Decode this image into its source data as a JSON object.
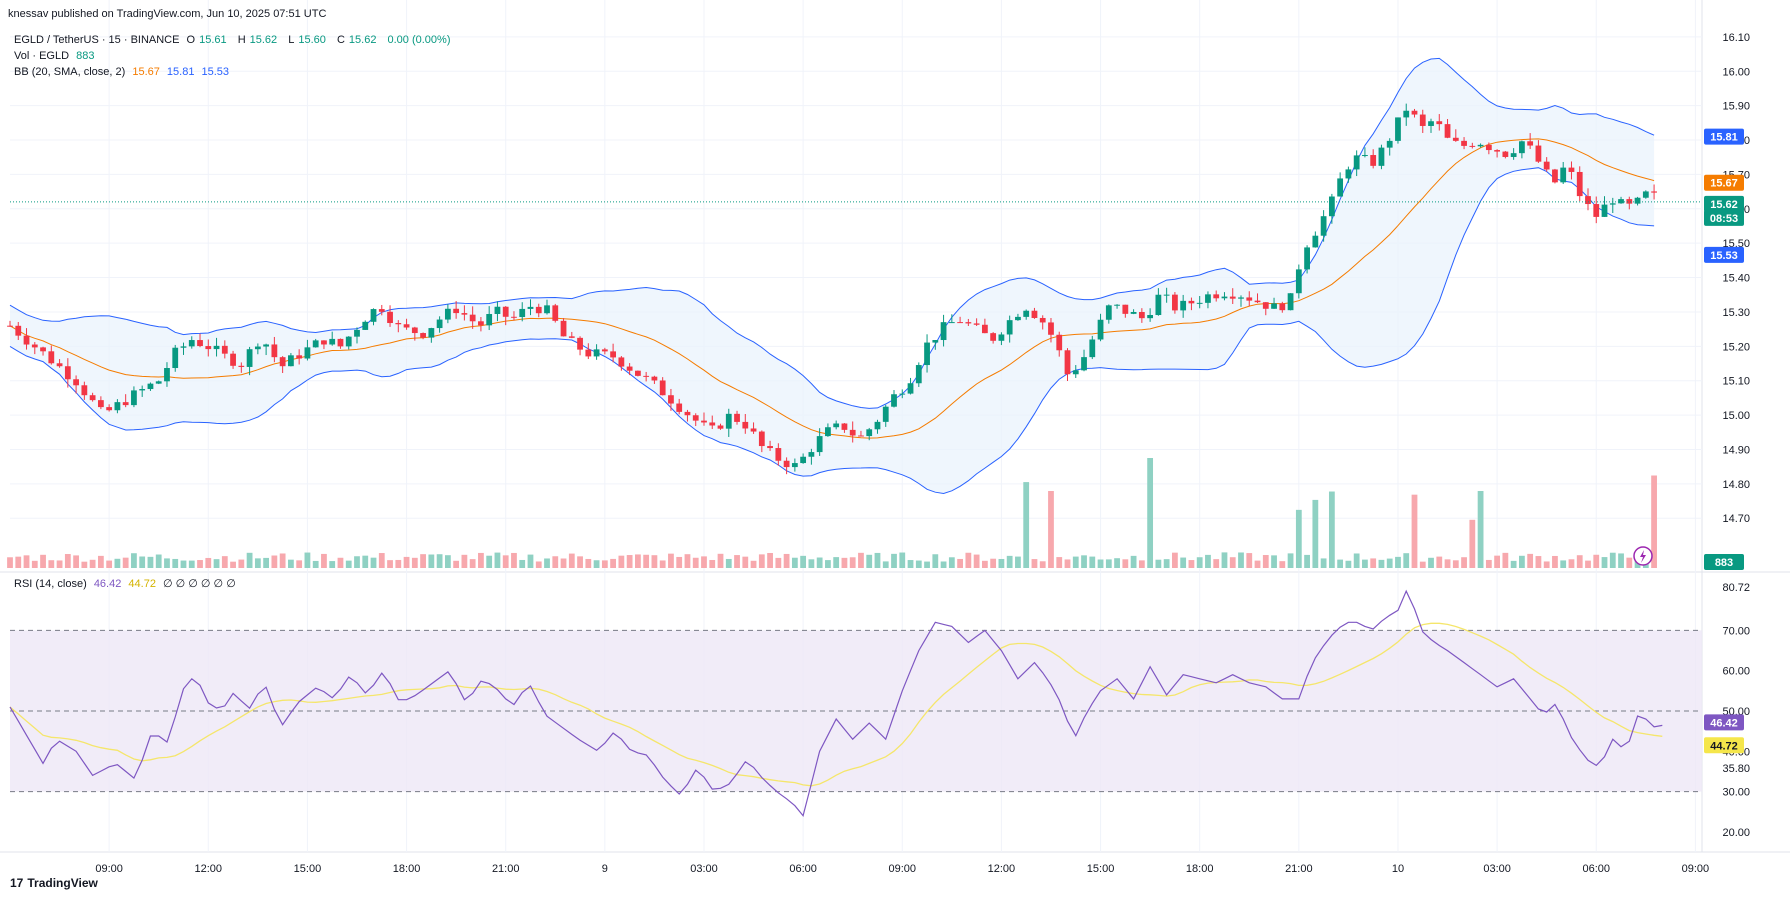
{
  "banner": "knessav published on TradingView.com, Jun 10, 2025 07:51 UTC",
  "symbol": {
    "title": "EGLD / TetherUS · 15 · BINANCE",
    "o_label": "O",
    "o": "15.61",
    "h_label": "H",
    "h": "15.62",
    "l_label": "L",
    "l": "15.60",
    "c_label": "C",
    "c": "15.62",
    "change": "0.00 (0.00%)"
  },
  "volume_legend": {
    "label": "Vol · EGLD",
    "value": "883"
  },
  "bb_legend": {
    "label": "BB (20, SMA, close, 2)",
    "basis": "15.67",
    "upper": "15.81",
    "lower": "15.53"
  },
  "rsi_legend": {
    "label": "RSI (14, close)",
    "rsi": "46.42",
    "ma": "44.72",
    "empties": "∅ ∅ ∅ ∅ ∅ ∅"
  },
  "brand": {
    "logo": "17",
    "name": "TradingView"
  },
  "colors": {
    "up": "#089981",
    "down": "#f23645",
    "vol_up": "#8fd1c3",
    "vol_down": "#f7a8ad",
    "bb_band": "#2962ff",
    "bb_basis": "#f57c00",
    "bb_fill": "#e8f2fc",
    "rsi_line": "#7e57c2",
    "rsi_ma": "#f5e66b",
    "rsi_fill": "#ede7f6"
  },
  "price_labels": [
    {
      "text": "15.81",
      "value": 15.81,
      "bg": "#2962ff"
    },
    {
      "text": "15.67",
      "value": 15.67,
      "bg": "#f57c00"
    },
    {
      "text": "15.62",
      "value": 15.62,
      "bg": "#089981"
    },
    {
      "text": "08:53",
      "value": 15.62,
      "bg": "#089981",
      "sub": true
    },
    {
      "text": "15.53",
      "value": 15.53,
      "bg": "#2962ff"
    }
  ],
  "volume_label": {
    "text": "883",
    "bg": "#089981"
  },
  "rsi_labels": [
    {
      "text": "46.42",
      "value": 46.42,
      "bg": "#7e57c2",
      "fg": "#ffffff"
    },
    {
      "text": "44.72",
      "value": 44.72,
      "bg": "#f5e64b",
      "fg": "#131722"
    }
  ],
  "chart_data": [
    {
      "type": "candlestick",
      "title": "EGLD / TetherUS · 15 · BINANCE",
      "ylim": [
        14.66,
        16.12
      ],
      "price_ticks": [
        16.1,
        16.0,
        15.9,
        15.8,
        15.7,
        15.6,
        15.5,
        15.4,
        15.3,
        15.2,
        15.1,
        15.0,
        14.9,
        14.8,
        14.7
      ],
      "tick_labels": [
        "16.10",
        "16.00",
        "15.90",
        "15.80",
        "15.70",
        "15.60",
        "15.50",
        "15.40",
        "15.30",
        "15.20",
        "15.10",
        "15.00",
        "14.90",
        "14.80",
        "14.70"
      ],
      "x_ticks": [
        {
          "label": "09:00",
          "t": 9
        },
        {
          "label": "12:00",
          "t": 12
        },
        {
          "label": "15:00",
          "t": 15
        },
        {
          "label": "18:00",
          "t": 18
        },
        {
          "label": "21:00",
          "t": 21
        },
        {
          "label": "9",
          "t": 24
        },
        {
          "label": "03:00",
          "t": 27
        },
        {
          "label": "06:00",
          "t": 30
        },
        {
          "label": "09:00",
          "t": 33
        },
        {
          "label": "12:00",
          "t": 36
        },
        {
          "label": "15:00",
          "t": 39
        },
        {
          "label": "18:00",
          "t": 42
        },
        {
          "label": "21:00",
          "t": 45
        },
        {
          "label": "10",
          "t": 48
        },
        {
          "label": "03:00",
          "t": 51
        },
        {
          "label": "06:00",
          "t": 54
        },
        {
          "label": "09:00",
          "t": 57
        }
      ],
      "x_range_hours": [
        6.0,
        57.2
      ],
      "last_price": 15.62,
      "close_anchors": [
        [
          6.0,
          15.26
        ],
        [
          7.0,
          15.18
        ],
        [
          8.0,
          15.1
        ],
        [
          8.8,
          15.0
        ],
        [
          9.6,
          15.05
        ],
        [
          10.5,
          15.1
        ],
        [
          11.0,
          15.18
        ],
        [
          11.5,
          15.22
        ],
        [
          12.0,
          15.2
        ],
        [
          12.5,
          15.17
        ],
        [
          13.0,
          15.15
        ],
        [
          13.6,
          15.23
        ],
        [
          14.2,
          15.14
        ],
        [
          14.8,
          15.18
        ],
        [
          15.5,
          15.22
        ],
        [
          16.0,
          15.2
        ],
        [
          16.7,
          15.28
        ],
        [
          17.2,
          15.32
        ],
        [
          17.8,
          15.25
        ],
        [
          18.5,
          15.24
        ],
        [
          19.0,
          15.28
        ],
        [
          19.5,
          15.31
        ],
        [
          20.2,
          15.26
        ],
        [
          20.7,
          15.3
        ],
        [
          21.2,
          15.28
        ],
        [
          21.8,
          15.32
        ],
        [
          22.3,
          15.3
        ],
        [
          22.8,
          15.22
        ],
        [
          23.5,
          15.18
        ],
        [
          24.3,
          15.17
        ],
        [
          25.0,
          15.12
        ],
        [
          25.6,
          15.08
        ],
        [
          26.2,
          15.03
        ],
        [
          26.8,
          14.98
        ],
        [
          27.2,
          14.95
        ],
        [
          27.8,
          15.0
        ],
        [
          28.3,
          14.97
        ],
        [
          28.8,
          14.9
        ],
        [
          29.3,
          14.87
        ],
        [
          29.8,
          14.85
        ],
        [
          30.2,
          14.9
        ],
        [
          30.7,
          14.95
        ],
        [
          31.2,
          14.97
        ],
        [
          31.7,
          14.93
        ],
        [
          32.2,
          14.98
        ],
        [
          32.7,
          15.05
        ],
        [
          33.2,
          15.1
        ],
        [
          33.7,
          15.2
        ],
        [
          34.2,
          15.25
        ],
        [
          34.7,
          15.28
        ],
        [
          35.2,
          15.25
        ],
        [
          35.7,
          15.22
        ],
        [
          36.2,
          15.27
        ],
        [
          36.7,
          15.32
        ],
        [
          37.2,
          15.28
        ],
        [
          37.6,
          15.22
        ],
        [
          38.0,
          15.12
        ],
        [
          38.4,
          15.15
        ],
        [
          38.9,
          15.25
        ],
        [
          39.3,
          15.32
        ],
        [
          39.8,
          15.3
        ],
        [
          40.3,
          15.28
        ],
        [
          40.8,
          15.35
        ],
        [
          41.3,
          15.31
        ],
        [
          41.8,
          15.33
        ],
        [
          42.3,
          15.35
        ],
        [
          42.8,
          15.36
        ],
        [
          43.3,
          15.35
        ],
        [
          43.8,
          15.33
        ],
        [
          44.3,
          15.31
        ],
        [
          44.8,
          15.34
        ],
        [
          45.1,
          15.48
        ],
        [
          45.6,
          15.55
        ],
        [
          46.0,
          15.62
        ],
        [
          46.4,
          15.72
        ],
        [
          46.8,
          15.75
        ],
        [
          47.2,
          15.73
        ],
        [
          47.6,
          15.78
        ],
        [
          48.0,
          15.85
        ],
        [
          48.3,
          15.9
        ],
        [
          48.7,
          15.83
        ],
        [
          49.1,
          15.86
        ],
        [
          49.5,
          15.8
        ],
        [
          49.9,
          15.78
        ],
        [
          50.4,
          15.8
        ],
        [
          50.8,
          15.78
        ],
        [
          51.3,
          15.76
        ],
        [
          51.8,
          15.8
        ],
        [
          52.3,
          15.73
        ],
        [
          52.7,
          15.67
        ],
        [
          53.1,
          15.73
        ],
        [
          53.6,
          15.62
        ],
        [
          54.0,
          15.58
        ],
        [
          54.5,
          15.63
        ],
        [
          54.9,
          15.6
        ],
        [
          55.3,
          15.62
        ],
        [
          55.6,
          15.65
        ],
        [
          55.9,
          15.62
        ]
      ],
      "volume_spikes": [
        {
          "t": 36.8,
          "v": 820,
          "up": false
        },
        {
          "t": 37.6,
          "v": 735,
          "up": true
        },
        {
          "t": 40.5,
          "v": 1050,
          "up": false
        },
        {
          "t": 45.0,
          "v": 555,
          "up": false
        },
        {
          "t": 45.5,
          "v": 650,
          "up": true
        },
        {
          "t": 46.1,
          "v": 730,
          "up": true
        },
        {
          "t": 48.6,
          "v": 700,
          "up": true
        },
        {
          "t": 50.2,
          "v": 460,
          "up": true
        },
        {
          "t": 50.6,
          "v": 735,
          "up": false
        }
      ],
      "volume_value": 883
    },
    {
      "type": "line",
      "title": "RSI (14, close)",
      "ylim": [
        15,
        84
      ],
      "ticks": [
        80.72,
        70.0,
        60.0,
        50.0,
        40.0,
        35.8,
        30.0,
        20.0
      ],
      "tick_labels": [
        "80.72",
        "70.00",
        "60.00",
        "50.00",
        "40.00",
        "35.80",
        "30.00",
        "20.00"
      ],
      "levels": {
        "upper": 70,
        "middle": 50,
        "lower": 30
      },
      "rsi_anchors": [
        [
          6.0,
          51
        ],
        [
          6.5,
          44
        ],
        [
          7.0,
          37
        ],
        [
          7.4,
          43
        ],
        [
          8.0,
          40
        ],
        [
          8.5,
          34
        ],
        [
          9.2,
          37
        ],
        [
          9.8,
          33
        ],
        [
          10.3,
          45
        ],
        [
          10.8,
          42
        ],
        [
          11.2,
          55
        ],
        [
          11.6,
          59
        ],
        [
          12.0,
          52
        ],
        [
          12.4,
          50
        ],
        [
          12.8,
          55
        ],
        [
          13.2,
          50
        ],
        [
          13.7,
          57
        ],
        [
          14.2,
          46
        ],
        [
          14.7,
          52
        ],
        [
          15.3,
          56
        ],
        [
          15.8,
          53
        ],
        [
          16.3,
          59
        ],
        [
          16.8,
          54
        ],
        [
          17.3,
          60
        ],
        [
          17.8,
          52
        ],
        [
          18.3,
          54
        ],
        [
          18.8,
          57
        ],
        [
          19.3,
          60
        ],
        [
          19.8,
          52
        ],
        [
          20.3,
          58
        ],
        [
          20.8,
          55
        ],
        [
          21.2,
          51
        ],
        [
          21.7,
          57
        ],
        [
          22.2,
          49
        ],
        [
          22.7,
          46
        ],
        [
          23.2,
          43
        ],
        [
          23.8,
          40
        ],
        [
          24.3,
          45
        ],
        [
          24.8,
          40
        ],
        [
          25.3,
          39
        ],
        [
          25.8,
          33
        ],
        [
          26.3,
          29
        ],
        [
          26.8,
          36
        ],
        [
          27.3,
          30
        ],
        [
          27.8,
          32
        ],
        [
          28.3,
          38
        ],
        [
          28.8,
          33
        ],
        [
          29.2,
          30
        ],
        [
          29.7,
          27
        ],
        [
          30.0,
          24
        ],
        [
          30.5,
          40
        ],
        [
          31.0,
          48
        ],
        [
          31.5,
          43
        ],
        [
          32.0,
          47
        ],
        [
          32.5,
          43
        ],
        [
          33.0,
          55
        ],
        [
          33.5,
          65
        ],
        [
          34.0,
          72
        ],
        [
          34.5,
          71
        ],
        [
          35.0,
          67
        ],
        [
          35.5,
          70
        ],
        [
          36.0,
          65
        ],
        [
          36.5,
          58
        ],
        [
          37.0,
          62
        ],
        [
          37.4,
          58
        ],
        [
          37.8,
          52
        ],
        [
          38.2,
          43
        ],
        [
          38.6,
          50
        ],
        [
          39.0,
          55
        ],
        [
          39.5,
          58
        ],
        [
          40.0,
          53
        ],
        [
          40.5,
          61
        ],
        [
          41.0,
          54
        ],
        [
          41.5,
          59
        ],
        [
          42.0,
          58
        ],
        [
          42.5,
          57
        ],
        [
          43.0,
          59
        ],
        [
          43.5,
          57
        ],
        [
          44.0,
          56
        ],
        [
          44.5,
          53
        ],
        [
          45.0,
          53
        ],
        [
          45.4,
          62
        ],
        [
          45.9,
          68
        ],
        [
          46.4,
          72
        ],
        [
          46.8,
          72
        ],
        [
          47.2,
          70
        ],
        [
          47.6,
          73
        ],
        [
          48.0,
          75
        ],
        [
          48.3,
          80.7
        ],
        [
          48.7,
          70
        ],
        [
          49.1,
          67
        ],
        [
          49.5,
          65
        ],
        [
          50.0,
          62
        ],
        [
          50.5,
          59
        ],
        [
          51.0,
          56
        ],
        [
          51.5,
          58
        ],
        [
          52.0,
          53
        ],
        [
          52.4,
          49
        ],
        [
          52.8,
          52
        ],
        [
          53.2,
          44
        ],
        [
          53.7,
          38
        ],
        [
          54.1,
          36
        ],
        [
          54.5,
          43
        ],
        [
          54.9,
          40
        ],
        [
          55.3,
          50
        ],
        [
          55.7,
          46
        ],
        [
          56.0,
          46.42
        ]
      ],
      "rsi_value": 46.42,
      "ma_value": 44.72
    }
  ]
}
